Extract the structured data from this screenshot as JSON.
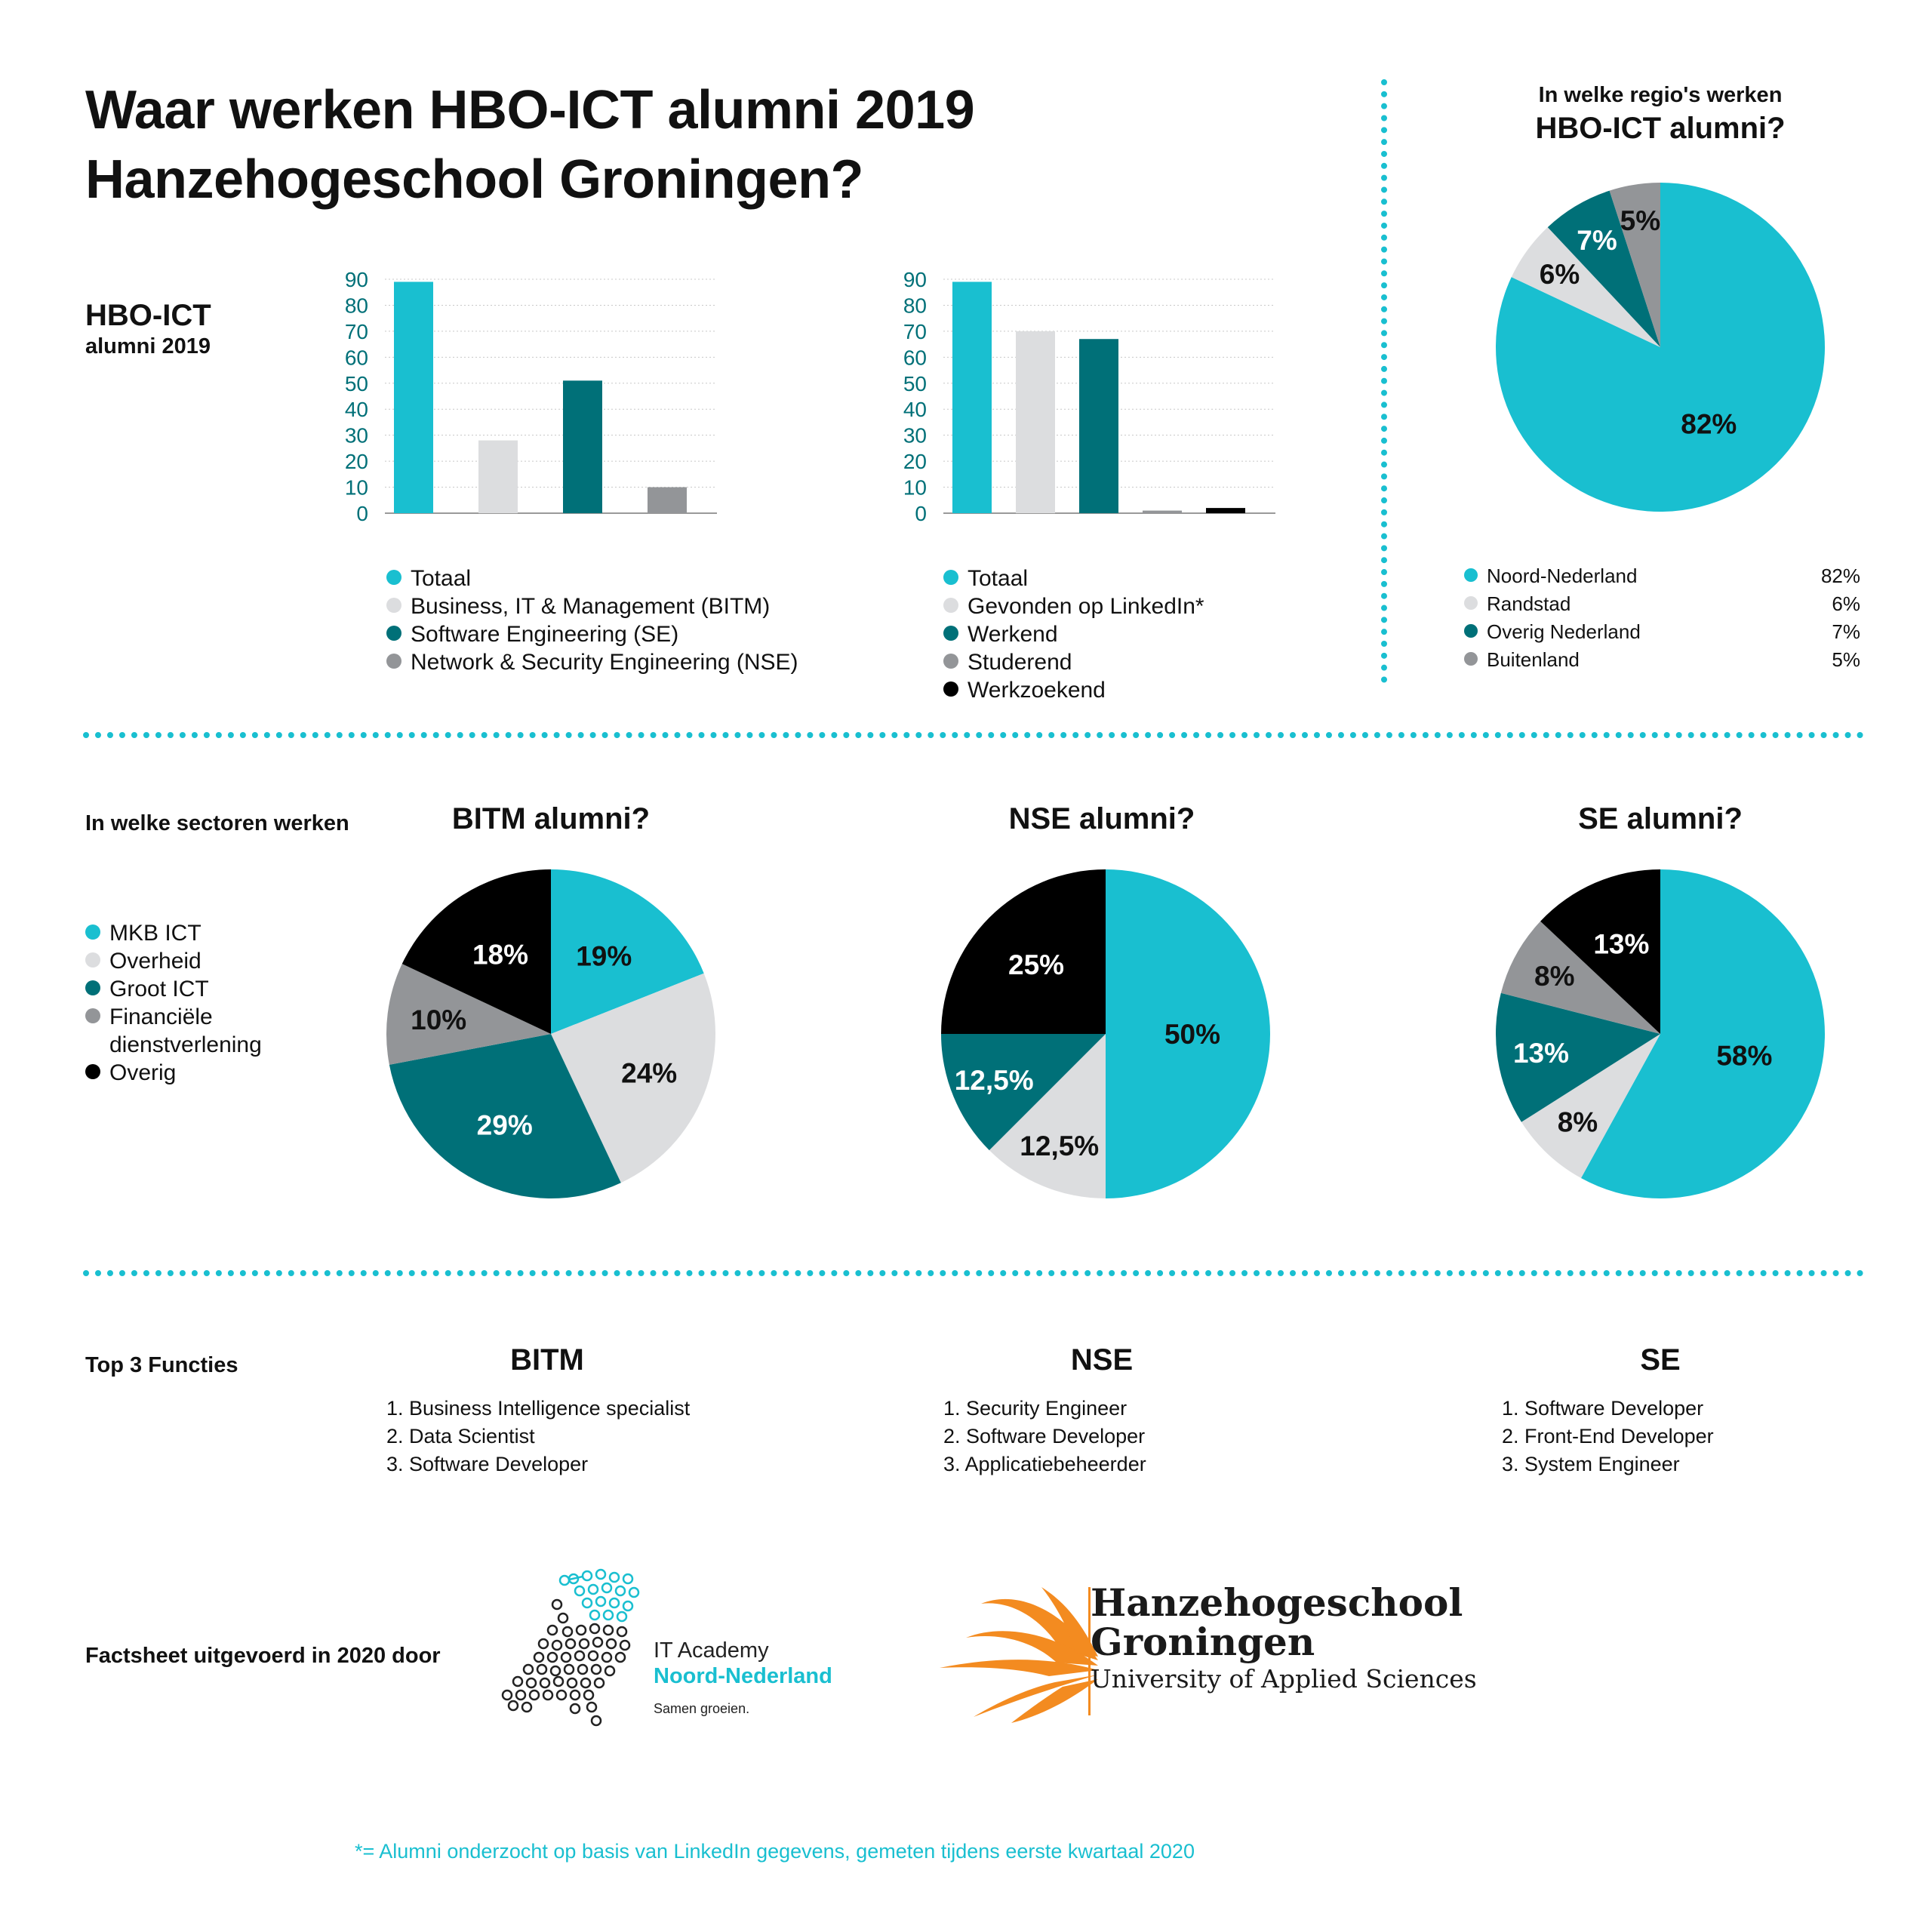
{
  "colors": {
    "teal": "#19bfd0",
    "light_gray": "#dcdddf",
    "dark_teal": "#007078",
    "gray": "#939598",
    "black": "#000000",
    "accent": "#19bfd0",
    "orange": "#f38b20"
  },
  "header": {
    "title_line1": "Waar werken HBO-ICT alumni 2019",
    "title_line2": "Hanzehogeschool Groningen?"
  },
  "side_label": {
    "line1": "HBO-ICT",
    "line2": "alumni 2019"
  },
  "chart_data": [
    {
      "type": "bar",
      "categories": [
        "Totaal",
        "Business, IT & Management (BITM)",
        "Software Engineering (SE)",
        "Network & Security Engineering (NSE)"
      ],
      "values": [
        89,
        28,
        51,
        10
      ],
      "colors": [
        "#19bfd0",
        "#dcdddf",
        "#007078",
        "#939598"
      ],
      "ylim": [
        0,
        90
      ],
      "yticks": [
        "0",
        "10",
        "20",
        "30",
        "40",
        "50",
        "60",
        "70",
        "80",
        "90"
      ],
      "grid": true,
      "legend": [
        "Totaal",
        "Business, IT & Management (BITM)",
        "Software Engineering (SE)",
        "Network & Security Engineering (NSE)"
      ]
    },
    {
      "type": "bar",
      "categories": [
        "Totaal",
        "Gevonden op LinkedIn*",
        "Werkend",
        "Studerend",
        "Werkzoekend"
      ],
      "values": [
        89,
        70,
        67,
        1,
        2
      ],
      "colors": [
        "#19bfd0",
        "#dcdddf",
        "#007078",
        "#939598",
        "#000000"
      ],
      "ylim": [
        0,
        90
      ],
      "yticks": [
        "0",
        "10",
        "20",
        "30",
        "40",
        "50",
        "60",
        "70",
        "80",
        "90"
      ],
      "grid": true,
      "legend": [
        "Totaal",
        "Gevonden op LinkedIn*",
        "Werkend",
        "Studerend",
        "Werkzoekend"
      ]
    },
    {
      "type": "pie",
      "title_line1": "In welke regio's werken",
      "title_line2": "HBO-ICT alumni?",
      "labels": [
        "Noord-Nederland",
        "Randstad",
        "Overig Nederland",
        "Buitenland"
      ],
      "values": [
        82,
        6,
        7,
        5
      ],
      "value_labels": [
        "82%",
        "6%",
        "7%",
        "5%"
      ],
      "colors": [
        "#19bfd0",
        "#dcdddf",
        "#007078",
        "#939598"
      ],
      "label_colors": [
        "#111111",
        "#111111",
        "#ffffff",
        "#111111"
      ]
    },
    {
      "type": "pie",
      "title": "BITM alumni?",
      "labels": [
        "MKB ICT",
        "Overheid",
        "Groot ICT",
        "Financiële dienstverlening",
        "Overig"
      ],
      "values": [
        19,
        24,
        29,
        10,
        18
      ],
      "value_labels": [
        "19%",
        "24%",
        "29%",
        "10%",
        "18%"
      ],
      "colors": [
        "#19bfd0",
        "#dcdddf",
        "#007078",
        "#939598",
        "#000000"
      ],
      "label_colors": [
        "#111111",
        "#111111",
        "#ffffff",
        "#111111",
        "#ffffff"
      ]
    },
    {
      "type": "pie",
      "title": "NSE alumni?",
      "labels": [
        "MKB ICT",
        "Overheid",
        "Groot ICT",
        "Overig"
      ],
      "values": [
        50,
        12.5,
        12.5,
        25
      ],
      "value_labels": [
        "50%",
        "12,5%",
        "12,5%",
        "25%"
      ],
      "colors": [
        "#19bfd0",
        "#dcdddf",
        "#007078",
        "#000000"
      ],
      "label_colors": [
        "#111111",
        "#111111",
        "#ffffff",
        "#ffffff"
      ]
    },
    {
      "type": "pie",
      "title": "SE alumni?",
      "labels": [
        "MKB ICT",
        "Overheid",
        "Groot ICT",
        "Financiële dienstverlening",
        "Overig"
      ],
      "values": [
        58,
        8,
        13,
        8,
        13
      ],
      "value_labels": [
        "58%",
        "8%",
        "13%",
        "8%",
        "13%"
      ],
      "colors": [
        "#19bfd0",
        "#dcdddf",
        "#007078",
        "#939598",
        "#000000"
      ],
      "label_colors": [
        "#111111",
        "#111111",
        "#ffffff",
        "#111111",
        "#ffffff"
      ]
    }
  ],
  "region_legend": [
    {
      "label": "Noord-Nederland",
      "value": "82%",
      "color": "#19bfd0"
    },
    {
      "label": "Randstad",
      "value": "6%",
      "color": "#dcdddf"
    },
    {
      "label": "Overig Nederland",
      "value": "7%",
      "color": "#007078"
    },
    {
      "label": "Buitenland",
      "value": "5%",
      "color": "#939598"
    }
  ],
  "sectors": {
    "label": "In welke sectoren werken",
    "legend": [
      {
        "label": "MKB ICT",
        "color": "#19bfd0"
      },
      {
        "label": "Overheid",
        "color": "#dcdddf"
      },
      {
        "label": "Groot ICT",
        "color": "#007078"
      },
      {
        "label": "Financiële",
        "label2": "dienstverlening",
        "color": "#939598"
      },
      {
        "label": "Overig",
        "color": "#000000"
      }
    ]
  },
  "functions": {
    "label": "Top 3 Functies",
    "groups": [
      {
        "title": "BITM",
        "items": [
          "1. Business Intelligence specialist",
          "2. Data Scientist",
          "3. Software Developer"
        ]
      },
      {
        "title": "NSE",
        "items": [
          "1. Security Engineer",
          "2. Software Developer",
          "3. Applicatiebeheerder"
        ]
      },
      {
        "title": "SE",
        "items": [
          "1. Software Developer",
          "2. Front-End Developer",
          "3. System Engineer"
        ]
      }
    ]
  },
  "footer": {
    "label": "Factsheet uitgevoerd in 2020 door",
    "itacademy": {
      "line1": "IT Academy",
      "line2": "Noord-Nederland",
      "tagline": "Samen groeien.",
      "logo_icon": "netherlands-dot-map-icon"
    },
    "hanze": {
      "line1": "Hanzehogeschool",
      "line2": "Groningen",
      "line3": "University of Applied Sciences",
      "logo_icon": "flame-icon"
    },
    "note": "*= Alumni onderzocht op basis van LinkedIn gegevens, gemeten tijdens eerste kwartaal 2020"
  }
}
